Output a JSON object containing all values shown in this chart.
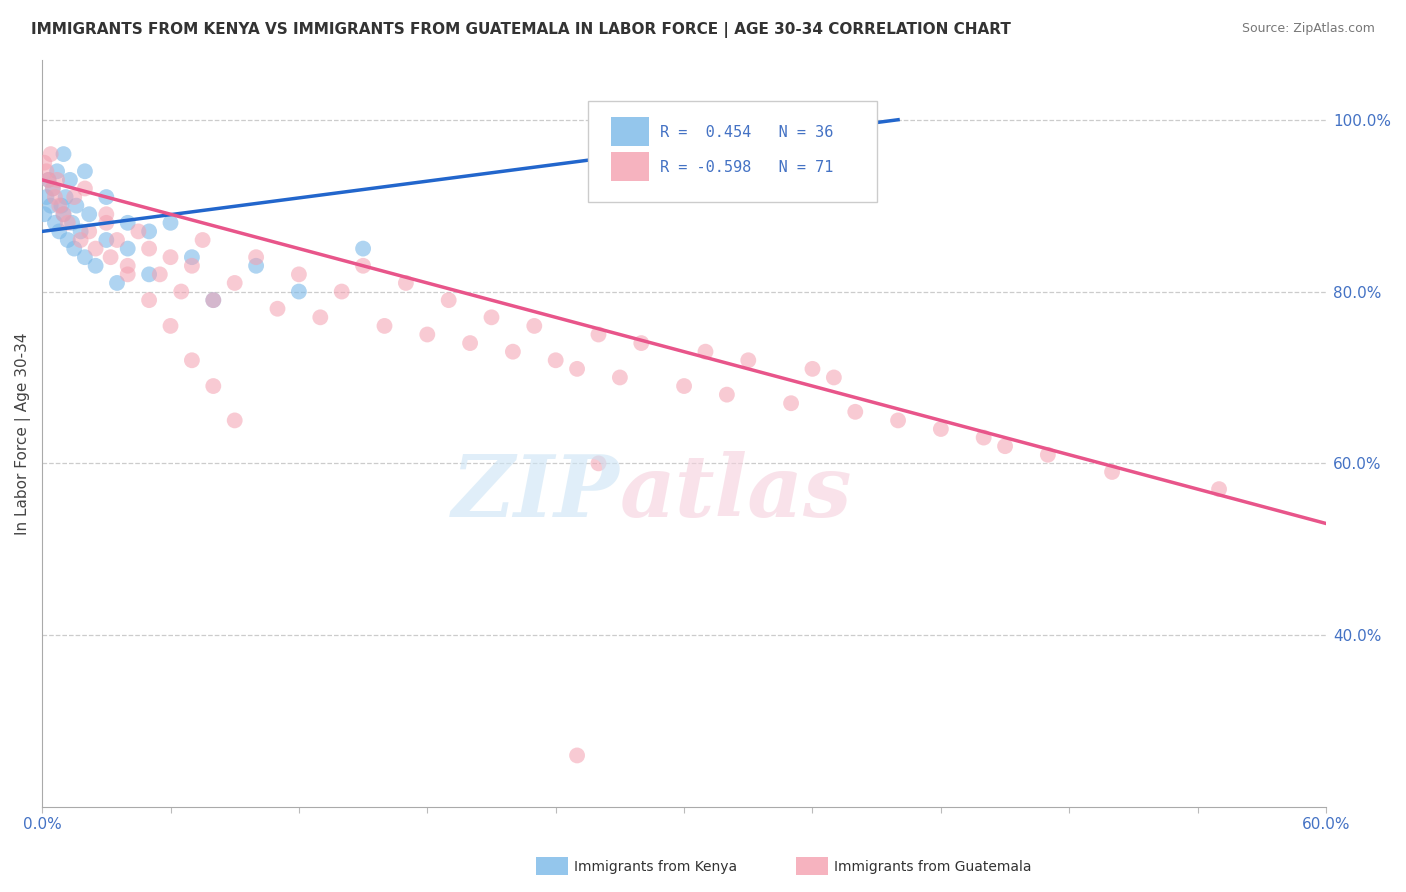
{
  "title": "IMMIGRANTS FROM KENYA VS IMMIGRANTS FROM GUATEMALA IN LABOR FORCE | AGE 30-34 CORRELATION CHART",
  "source": "Source: ZipAtlas.com",
  "ylabel": "In Labor Force | Age 30-34",
  "y_ticks_right": [
    40.0,
    60.0,
    80.0,
    100.0
  ],
  "y_tick_labels_right": [
    "40.0%",
    "60.0%",
    "80.0%",
    "100.0%"
  ],
  "kenya_R": 0.454,
  "kenya_N": 36,
  "guatemala_R": -0.598,
  "guatemala_N": 71,
  "kenya_color": "#7ab8e8",
  "guatemala_color": "#f4a0b0",
  "kenya_line_color": "#2266cc",
  "guatemala_line_color": "#e8558a",
  "xmin": 0.0,
  "xmax": 60.0,
  "ymin": 20.0,
  "ymax": 107.0,
  "kenya_scatter_x": [
    0.1,
    0.2,
    0.3,
    0.4,
    0.5,
    0.6,
    0.7,
    0.8,
    0.9,
    1.0,
    1.1,
    1.2,
    1.3,
    1.4,
    1.5,
    1.6,
    1.8,
    2.0,
    2.2,
    2.5,
    3.0,
    3.5,
    4.0,
    5.0,
    6.0,
    7.0,
    8.0,
    10.0,
    12.0,
    1.0,
    2.0,
    3.0,
    4.0,
    5.0,
    15.0,
    35.0
  ],
  "kenya_scatter_y": [
    89,
    91,
    93,
    90,
    92,
    88,
    94,
    87,
    90,
    89,
    91,
    86,
    93,
    88,
    85,
    90,
    87,
    84,
    89,
    83,
    86,
    81,
    85,
    82,
    88,
    84,
    79,
    83,
    80,
    96,
    94,
    91,
    88,
    87,
    85,
    100
  ],
  "guatemala_scatter_x": [
    0.1,
    0.2,
    0.3,
    0.4,
    0.5,
    0.6,
    0.7,
    0.8,
    1.0,
    1.2,
    1.5,
    1.8,
    2.0,
    2.2,
    2.5,
    3.0,
    3.2,
    3.5,
    4.0,
    4.5,
    5.0,
    5.5,
    6.0,
    6.5,
    7.0,
    7.5,
    8.0,
    9.0,
    10.0,
    11.0,
    12.0,
    13.0,
    14.0,
    15.0,
    16.0,
    17.0,
    18.0,
    19.0,
    20.0,
    21.0,
    22.0,
    23.0,
    24.0,
    25.0,
    26.0,
    27.0,
    28.0,
    30.0,
    31.0,
    32.0,
    33.0,
    35.0,
    36.0,
    37.0,
    38.0,
    40.0,
    42.0,
    44.0,
    45.0,
    47.0,
    50.0,
    55.0,
    3.0,
    4.0,
    5.0,
    6.0,
    7.0,
    8.0,
    9.0,
    25.0,
    26.0
  ],
  "guatemala_scatter_y": [
    95,
    94,
    93,
    96,
    92,
    91,
    93,
    90,
    89,
    88,
    91,
    86,
    92,
    87,
    85,
    89,
    84,
    86,
    83,
    87,
    85,
    82,
    84,
    80,
    83,
    86,
    79,
    81,
    84,
    78,
    82,
    77,
    80,
    83,
    76,
    81,
    75,
    79,
    74,
    77,
    73,
    76,
    72,
    71,
    75,
    70,
    74,
    69,
    73,
    68,
    72,
    67,
    71,
    70,
    66,
    65,
    64,
    63,
    62,
    61,
    59,
    57,
    88,
    82,
    79,
    76,
    72,
    69,
    65,
    26,
    60
  ]
}
